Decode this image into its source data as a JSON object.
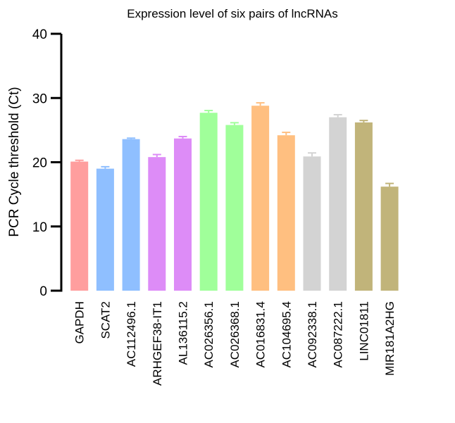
{
  "chart_data": {
    "type": "bar",
    "title": "Expression level of six pairs of lncRNAs",
    "xlabel": "",
    "ylabel": "PCR Cycle threshold (Ct)",
    "ylim": [
      0,
      40
    ],
    "yticks": [
      0,
      10,
      20,
      30,
      40
    ],
    "grid": false,
    "categories": [
      "GAPDH",
      "SCAT2",
      "AC112496.1",
      "ARHGEF38-IT1",
      "AL136115.2",
      "AC026356.1",
      "AC026368.1",
      "AC016831.4",
      "AC104695.4",
      "AC092338.1",
      "AC087222.1",
      "LINC01811",
      "MIR181A2HG"
    ],
    "values": [
      20.1,
      19.0,
      23.6,
      20.8,
      23.7,
      27.7,
      25.8,
      28.8,
      24.2,
      20.9,
      27.0,
      26.2,
      16.2
    ],
    "errors": [
      0.2,
      0.3,
      0.15,
      0.4,
      0.3,
      0.35,
      0.35,
      0.45,
      0.45,
      0.55,
      0.4,
      0.3,
      0.5
    ],
    "colors": [
      "#ff9e9e",
      "#8fbfff",
      "#8fbfff",
      "#dd8cf7",
      "#dd8cf7",
      "#a0ff9a",
      "#a0ff9a",
      "#ffbf80",
      "#ffbf80",
      "#d3d3d3",
      "#d3d3d3",
      "#c1b47a",
      "#c1b47a"
    ]
  }
}
